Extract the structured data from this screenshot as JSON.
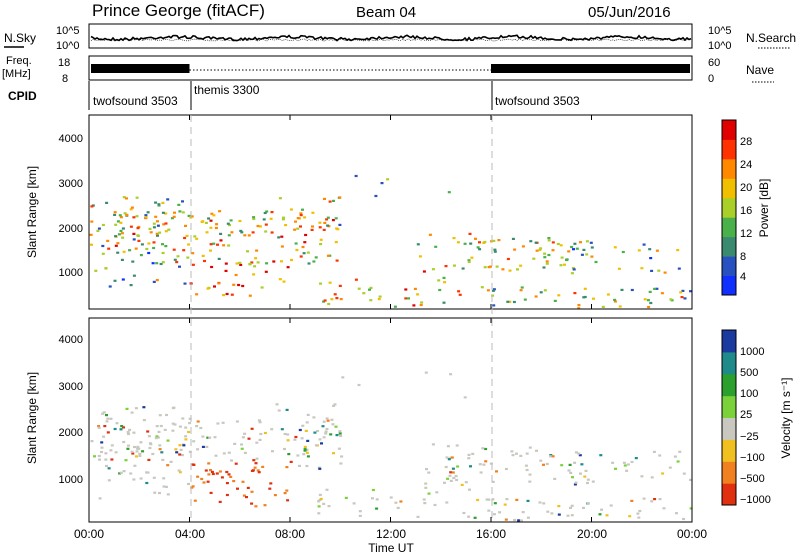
{
  "header": {
    "station": "Prince George (fitACF)",
    "beam": "Beam 04",
    "date": "05/Jun/2016"
  },
  "top_panel": {
    "noise": {
      "left_label": "N.Sky",
      "right_label": "N.Search",
      "left_ticks": [
        "10^5",
        "10^0"
      ],
      "right_ticks": [
        "10^5",
        "10^0"
      ]
    },
    "freq": {
      "left_label_line1": "Freq.",
      "left_label_line2": "[MHz]",
      "right_label": "Nave",
      "left_ticks": [
        "18",
        "8"
      ],
      "right_ticks": [
        "60",
        "0"
      ]
    },
    "cpid": {
      "label": "CPID",
      "modes": [
        {
          "name": "twofsound 3503",
          "start_hour": 0
        },
        {
          "name": "themis 3300",
          "start_hour": 4
        },
        {
          "name": "twofsound 3503",
          "start_hour": 16
        }
      ]
    }
  },
  "chart_data": [
    {
      "type": "heatmap",
      "panel": "power",
      "ylabel": "Slant Range [km]",
      "ylim": [
        180,
        4500
      ],
      "y_ticks": [
        "1000",
        "2000",
        "3000",
        "4000"
      ],
      "xlim": [
        0,
        24
      ],
      "colorbar": {
        "label": "Power [dB]",
        "range": [
          0,
          30
        ],
        "ticks": [
          "4",
          "8",
          "12",
          "16",
          "20",
          "24",
          "28"
        ],
        "colors": [
          "#1030ff",
          "#2850c0",
          "#3a8a70",
          "#4ab04a",
          "#a8d028",
          "#f0c000",
          "#ff8800",
          "#ff3300",
          "#e00000"
        ]
      }
    },
    {
      "type": "heatmap",
      "panel": "velocity",
      "ylabel": "Slant Range [km]",
      "ylim": [
        180,
        4500
      ],
      "y_ticks": [
        "1000",
        "2000",
        "3000",
        "4000"
      ],
      "xlim": [
        0,
        24
      ],
      "colorbar": {
        "label": "Velocity [m s⁻¹]",
        "ticks": [
          "1000",
          "500",
          "100",
          "25",
          "−25",
          "−100",
          "−500",
          "−1000"
        ],
        "colors": [
          "#1a3aa0",
          "#1f8a8a",
          "#2ca02c",
          "#7ad13a",
          "#c8c8c0",
          "#f0c020",
          "#f08020",
          "#e03010"
        ]
      }
    }
  ],
  "x_axis": {
    "ticks": [
      "00:00",
      "04:00",
      "08:00",
      "12:00",
      "16:00",
      "20:00",
      "00:00"
    ],
    "label": "Time UT"
  }
}
